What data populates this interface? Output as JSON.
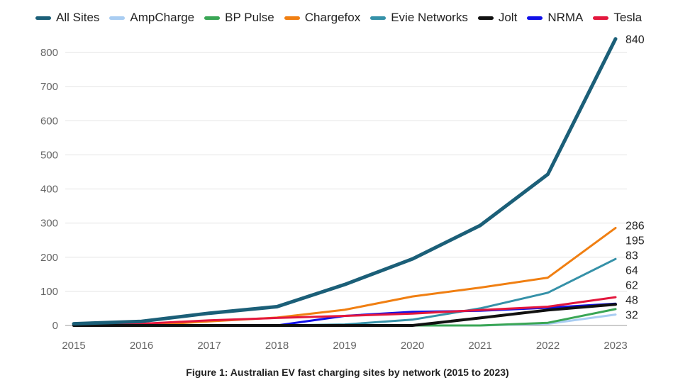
{
  "chart_data": {
    "type": "line",
    "caption": "Figure 1: Australian EV fast charging sites by network (2015 to 2023)",
    "x": [
      "2015",
      "2016",
      "2017",
      "2018",
      "2019",
      "2020",
      "2021",
      "2022",
      "2023"
    ],
    "ylim": [
      0,
      850
    ],
    "yticks": [
      0,
      100,
      200,
      300,
      400,
      500,
      600,
      700,
      800
    ],
    "grid": true,
    "legend_position": "top",
    "series": [
      {
        "name": "All Sites",
        "color": "#1b5f78",
        "width": 5,
        "values": [
          5,
          12,
          36,
          55,
          120,
          195,
          293,
          443,
          840
        ],
        "end_label": "840"
      },
      {
        "name": "AmpCharge",
        "color": "#a9cdf2",
        "width": 3,
        "values": [
          0,
          0,
          0,
          0,
          0,
          0,
          0,
          5,
          32
        ],
        "end_label": "32"
      },
      {
        "name": "BP Pulse",
        "color": "#3aa655",
        "width": 3,
        "values": [
          0,
          0,
          0,
          0,
          0,
          0,
          0,
          8,
          48
        ],
        "end_label": "48"
      },
      {
        "name": "Chargefox",
        "color": "#f07f12",
        "width": 3,
        "values": [
          0,
          0,
          12,
          23,
          46,
          85,
          111,
          140,
          286
        ],
        "end_label": "286"
      },
      {
        "name": "Evie Networks",
        "color": "#3591a8",
        "width": 3,
        "values": [
          0,
          0,
          0,
          0,
          3,
          17,
          50,
          96,
          195
        ],
        "end_label": "195"
      },
      {
        "name": "Jolt",
        "color": "#111111",
        "width": 4,
        "values": [
          0,
          0,
          0,
          0,
          0,
          0,
          22,
          45,
          62
        ],
        "end_label": "62"
      },
      {
        "name": "NRMA",
        "color": "#1010e8",
        "width": 3,
        "values": [
          0,
          0,
          0,
          0,
          28,
          40,
          43,
          52,
          64
        ],
        "end_label": "64"
      },
      {
        "name": "Tesla",
        "color": "#e3173d",
        "width": 3,
        "values": [
          2,
          5,
          15,
          22,
          28,
          35,
          45,
          55,
          83
        ],
        "end_label": "83"
      }
    ]
  }
}
